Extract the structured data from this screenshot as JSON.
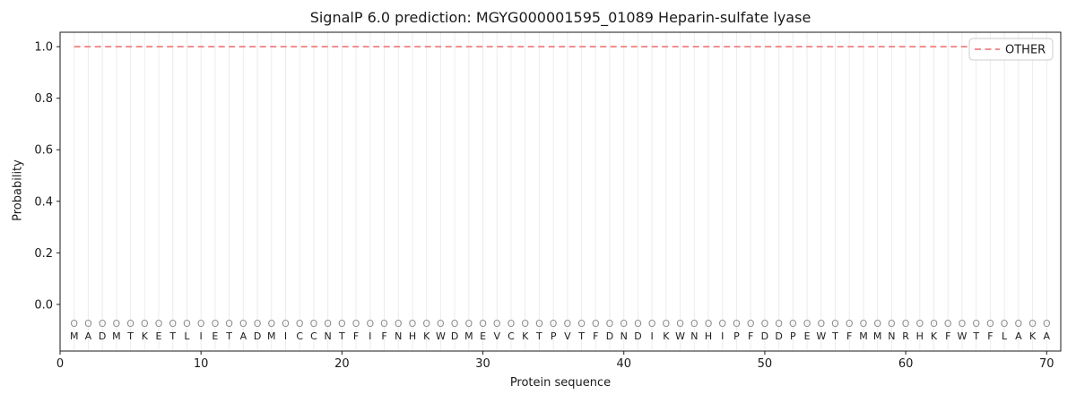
{
  "window": {
    "background": "#ffffff"
  },
  "chart_data": {
    "type": "line",
    "title": "SignalP 6.0 prediction: MGYG000001595_01089 Heparin-sulfate lyase",
    "xlabel": "Protein sequence",
    "ylabel": "Probability",
    "xlim": [
      0,
      71
    ],
    "ylim": [
      -0.181,
      1.056
    ],
    "xticks": [
      0,
      10,
      20,
      30,
      40,
      50,
      60,
      70
    ],
    "yticks": [
      0,
      0.2,
      0.4,
      0.6,
      0.8,
      1.0
    ],
    "grid": {
      "vertical_per_residue": true,
      "color": "#ececec"
    },
    "legend": {
      "position": "upper right",
      "entries": [
        {
          "label": "OTHER",
          "color": "#ef7f7f",
          "linestyle": "dashed"
        }
      ]
    },
    "sequence": "MADMTKETLIETADMICCNTFIFNHKWDMEVCKTPVTFDNDIKWNHIPFDDPEWTFMMNRHKFWTFLAKA",
    "pred_labels": "OOOOOOOOOOOOOOOOOOOOOOOOOOOOOOOOOOOOOOOOOOOOOOOOOOOOOOOOOOOOOOOOOOOOOO",
    "series": [
      {
        "name": "OTHER",
        "color": "#ef7f7f",
        "linestyle": "dashed",
        "x": [
          1,
          2,
          3,
          4,
          5,
          6,
          7,
          8,
          9,
          10,
          11,
          12,
          13,
          14,
          15,
          16,
          17,
          18,
          19,
          20,
          21,
          22,
          23,
          24,
          25,
          26,
          27,
          28,
          29,
          30,
          31,
          32,
          33,
          34,
          35,
          36,
          37,
          38,
          39,
          40,
          41,
          42,
          43,
          44,
          45,
          46,
          47,
          48,
          49,
          50,
          51,
          52,
          53,
          54,
          55,
          56,
          57,
          58,
          59,
          60,
          61,
          62,
          63,
          64,
          65,
          66,
          67,
          68,
          69,
          70
        ],
        "values": [
          1,
          1,
          1,
          1,
          1,
          1,
          1,
          1,
          1,
          1,
          1,
          1,
          1,
          1,
          1,
          1,
          1,
          1,
          1,
          1,
          1,
          1,
          1,
          1,
          1,
          1,
          1,
          1,
          1,
          1,
          1,
          1,
          1,
          1,
          1,
          1,
          1,
          1,
          1,
          1,
          1,
          1,
          1,
          1,
          1,
          1,
          1,
          1,
          1,
          1,
          1,
          1,
          1,
          1,
          1,
          1,
          1,
          1,
          1,
          1,
          1,
          1,
          1,
          1,
          1,
          1,
          1,
          1,
          1,
          1
        ]
      }
    ],
    "colors": {
      "residue_letters": "#1c1c1c",
      "pred_label_row": "#8f8f8f",
      "spine": "#1a1a1a",
      "tick_text": "#1a1a1a",
      "legend_border": "#cccccc",
      "legend_bg": "#ffffff"
    }
  }
}
